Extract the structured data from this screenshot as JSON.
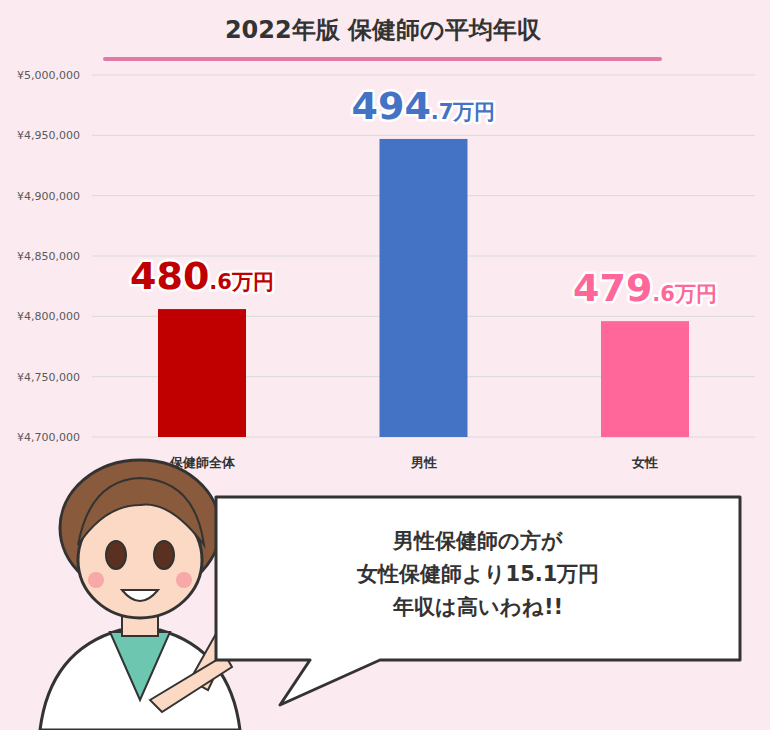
{
  "chart_data": {
    "type": "bar",
    "title": "2022年版 保健師の平均年収",
    "categories": [
      "保健師全体",
      "男性",
      "女性"
    ],
    "values": [
      4806000,
      4947000,
      4796000
    ],
    "value_labels": [
      "480.6万円",
      "494.7万円",
      "479.6万円"
    ],
    "colors": [
      "#c00000",
      "#4472c4",
      "#ff6699"
    ],
    "ylim": [
      4700000,
      5000000
    ],
    "yticks": [
      {
        "value": 4700000,
        "label": "¥4,700,000"
      },
      {
        "value": 4750000,
        "label": "¥4,750,000"
      },
      {
        "value": 4800000,
        "label": "¥4,800,000"
      },
      {
        "value": 4850000,
        "label": "¥4,850,000"
      },
      {
        "value": 4900000,
        "label": "¥4,900,000"
      },
      {
        "value": 4950000,
        "label": "¥4,950,000"
      },
      {
        "value": 5000000,
        "label": "¥5,000,000"
      }
    ],
    "grid": true,
    "data_labels": true,
    "annotation": "男性保健師の方が\n女性保健師より15.1万円\n年収は高いわね!!"
  }
}
